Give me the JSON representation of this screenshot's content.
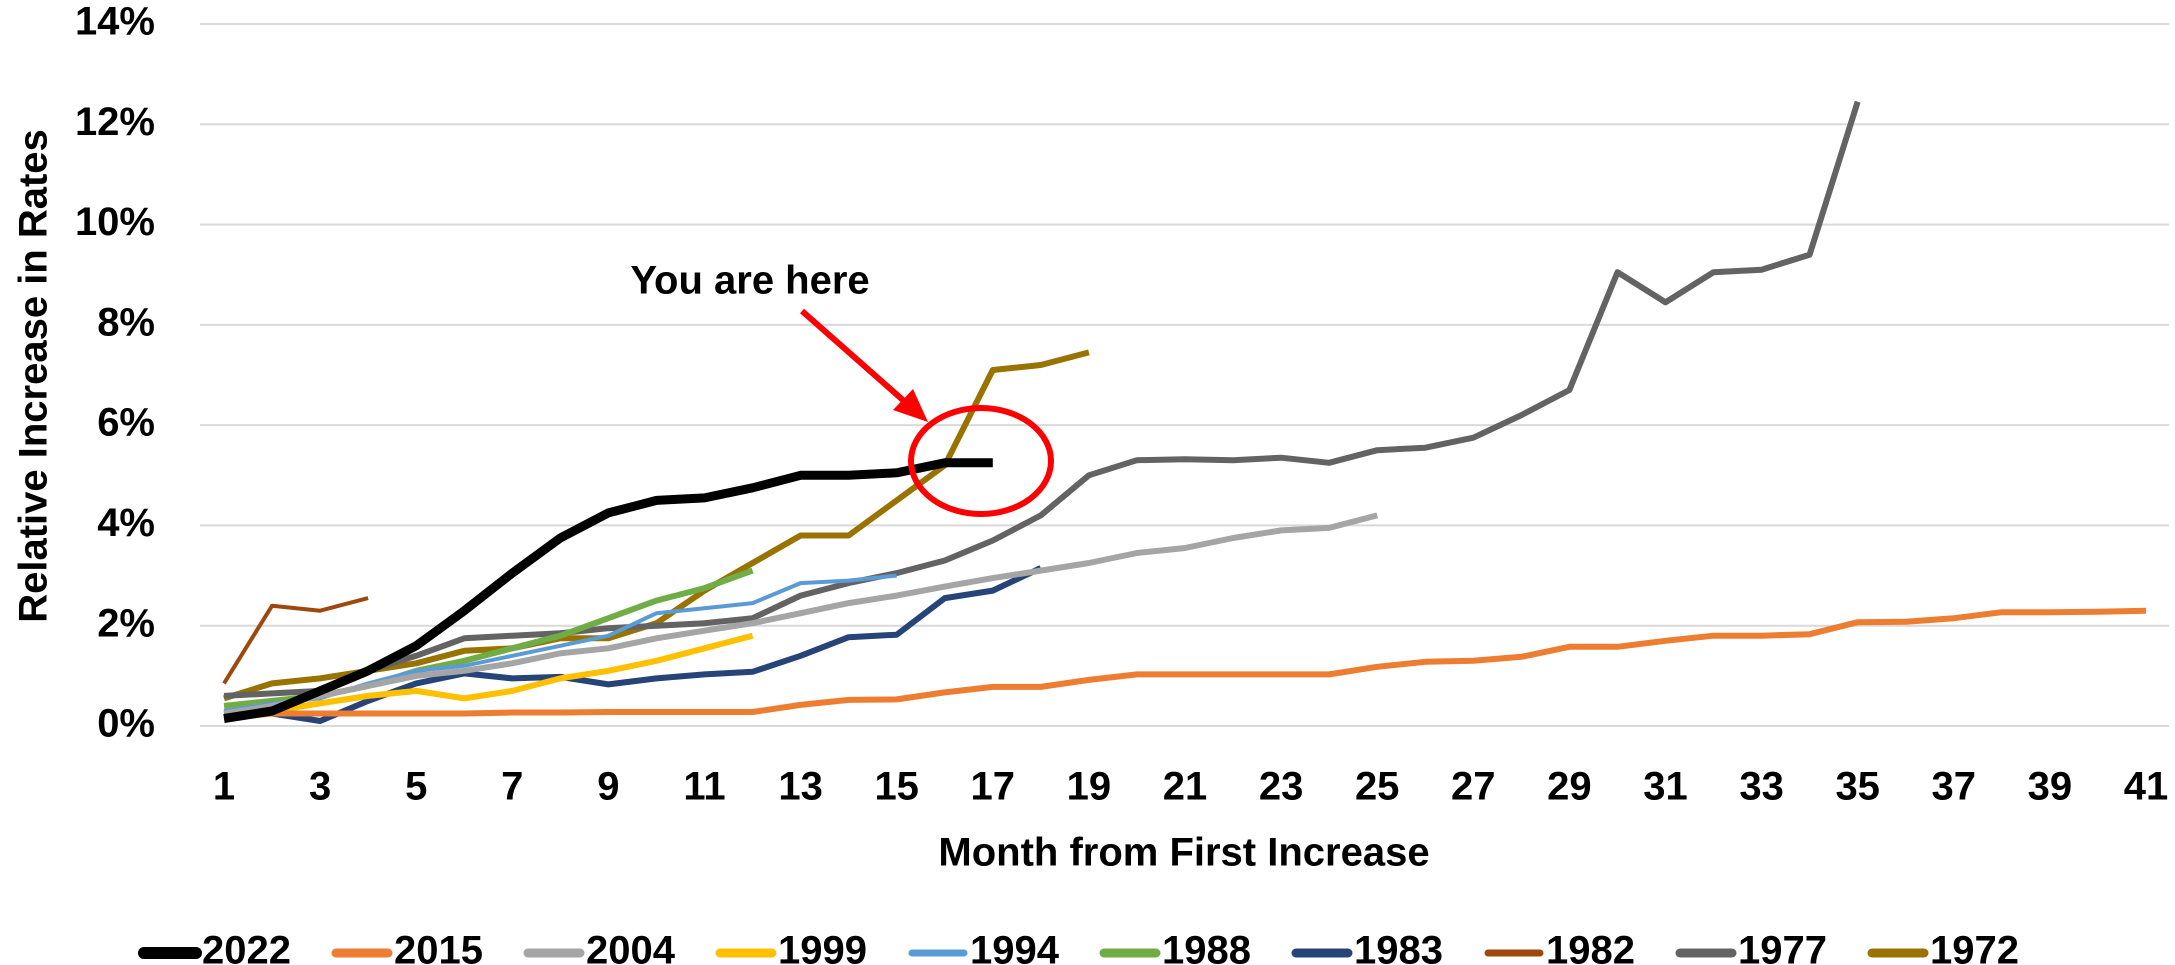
{
  "chart_data": {
    "type": "line",
    "xlabel": "Month from First Increase",
    "ylabel": "Relative Increase in Rates",
    "annotation": "You are here",
    "grid": true,
    "legend": "bottom",
    "x": [
      1,
      2,
      3,
      4,
      5,
      6,
      7,
      8,
      9,
      10,
      11,
      12,
      13,
      14,
      15,
      16,
      17,
      18,
      19,
      20,
      21,
      22,
      23,
      24,
      25,
      26,
      27,
      28,
      29,
      30,
      31,
      32,
      33,
      34,
      35,
      36,
      37,
      38,
      39,
      40,
      41
    ],
    "xlim": [
      1,
      41
    ],
    "xticks": [
      1,
      3,
      5,
      7,
      9,
      11,
      13,
      15,
      17,
      19,
      21,
      23,
      25,
      27,
      29,
      31,
      33,
      35,
      37,
      39,
      41
    ],
    "ylim": [
      0,
      14
    ],
    "yticks": [
      {
        "value": 0,
        "label": "0%"
      },
      {
        "value": 2,
        "label": "2%"
      },
      {
        "value": 4,
        "label": "4%"
      },
      {
        "value": 6,
        "label": "6%"
      },
      {
        "value": 8,
        "label": "8%"
      },
      {
        "value": 10,
        "label": "10%"
      },
      {
        "value": 12,
        "label": "12%"
      },
      {
        "value": 14,
        "label": "14%"
      }
    ],
    "series": [
      {
        "name": "2022",
        "color": "#000000",
        "width": 9,
        "values": [
          0.15,
          0.3,
          0.7,
          1.1,
          1.6,
          2.3,
          3.05,
          3.75,
          4.25,
          4.5,
          4.55,
          4.75,
          5.0,
          5.0,
          5.05,
          5.25,
          5.25,
          null,
          null,
          null,
          null,
          null,
          null,
          null,
          null,
          null,
          null,
          null,
          null,
          null,
          null,
          null,
          null,
          null,
          null,
          null,
          null,
          null,
          null,
          null,
          null
        ]
      },
      {
        "name": "2015",
        "color": "#ed7d31",
        "width": 6,
        "values": [
          0.15,
          0.25,
          0.25,
          0.25,
          0.25,
          0.25,
          0.27,
          0.27,
          0.28,
          0.28,
          0.28,
          0.28,
          0.42,
          0.52,
          0.53,
          0.67,
          0.78,
          0.78,
          0.92,
          1.03,
          1.03,
          1.03,
          1.03,
          1.03,
          1.18,
          1.28,
          1.3,
          1.38,
          1.58,
          1.58,
          1.7,
          1.8,
          1.8,
          1.83,
          2.07,
          2.08,
          2.15,
          2.27,
          2.27,
          2.28,
          2.3
        ]
      },
      {
        "name": "2004",
        "color": "#a5a5a5",
        "width": 6,
        "values": [
          0.25,
          0.4,
          0.6,
          0.8,
          1.0,
          1.1,
          1.25,
          1.45,
          1.55,
          1.75,
          1.9,
          2.05,
          2.25,
          2.45,
          2.6,
          2.78,
          2.95,
          3.1,
          3.25,
          3.45,
          3.55,
          3.75,
          3.9,
          3.95,
          4.2,
          null,
          null,
          null,
          null,
          null,
          null,
          null,
          null,
          null,
          null,
          null,
          null,
          null,
          null,
          null,
          null
        ]
      },
      {
        "name": "1999",
        "color": "#ffc000",
        "width": 6,
        "values": [
          0.25,
          0.3,
          0.45,
          0.6,
          0.7,
          0.55,
          0.7,
          0.95,
          1.1,
          1.3,
          1.55,
          1.8,
          null,
          null,
          null,
          null,
          null,
          null,
          null,
          null,
          null,
          null,
          null,
          null,
          null,
          null,
          null,
          null,
          null,
          null,
          null,
          null,
          null,
          null,
          null,
          null,
          null,
          null,
          null,
          null,
          null
        ]
      },
      {
        "name": "1994",
        "color": "#5b9bd5",
        "width": 4,
        "values": [
          0.3,
          0.45,
          0.55,
          0.85,
          1.1,
          1.2,
          1.4,
          1.6,
          1.8,
          2.25,
          2.35,
          2.45,
          2.85,
          2.9,
          3.0,
          null,
          null,
          null,
          null,
          null,
          null,
          null,
          null,
          null,
          null,
          null,
          null,
          null,
          null,
          null,
          null,
          null,
          null,
          null,
          null,
          null,
          null,
          null,
          null,
          null,
          null
        ]
      },
      {
        "name": "1988",
        "color": "#70ad47",
        "width": 6,
        "values": [
          0.4,
          0.5,
          0.6,
          0.8,
          1.1,
          1.3,
          1.55,
          1.8,
          2.15,
          2.5,
          2.75,
          3.1,
          null,
          null,
          null,
          null,
          null,
          null,
          null,
          null,
          null,
          null,
          null,
          null,
          null,
          null,
          null,
          null,
          null,
          null,
          null,
          null,
          null,
          null,
          null,
          null,
          null,
          null,
          null,
          null,
          null
        ]
      },
      {
        "name": "1983",
        "color": "#264478",
        "width": 6,
        "values": [
          0.25,
          0.25,
          0.1,
          0.5,
          0.85,
          1.05,
          0.95,
          0.98,
          0.83,
          0.95,
          1.03,
          1.08,
          1.4,
          1.77,
          1.82,
          2.55,
          2.7,
          3.15,
          null,
          null,
          null,
          null,
          null,
          null,
          null,
          null,
          null,
          null,
          null,
          null,
          null,
          null,
          null,
          null,
          null,
          null,
          null,
          null,
          null,
          null,
          null
        ]
      },
      {
        "name": "1982",
        "color": "#9e480e",
        "width": 4,
        "values": [
          0.85,
          2.4,
          2.3,
          2.55,
          null,
          null,
          null,
          null,
          null,
          null,
          null,
          null,
          null,
          null,
          null,
          null,
          null,
          null,
          null,
          null,
          null,
          null,
          null,
          null,
          null,
          null,
          null,
          null,
          null,
          null,
          null,
          null,
          null,
          null,
          null,
          null,
          null,
          null,
          null,
          null,
          null
        ]
      },
      {
        "name": "1977",
        "color": "#636363",
        "width": 6,
        "values": [
          0.6,
          0.65,
          0.7,
          1.1,
          1.4,
          1.75,
          1.8,
          1.85,
          1.95,
          2.0,
          2.05,
          2.15,
          2.6,
          2.85,
          3.05,
          3.3,
          3.7,
          4.2,
          5.0,
          5.3,
          5.32,
          5.3,
          5.35,
          5.25,
          5.5,
          5.55,
          5.75,
          6.2,
          6.7,
          9.05,
          8.45,
          9.05,
          9.1,
          9.4,
          12.45,
          null,
          null,
          null,
          null,
          null,
          null
        ]
      },
      {
        "name": "1972",
        "color": "#997300",
        "width": 6,
        "values": [
          0.55,
          0.85,
          0.95,
          1.1,
          1.25,
          1.5,
          1.55,
          1.75,
          1.75,
          2.05,
          2.7,
          3.25,
          3.8,
          3.8,
          4.5,
          5.2,
          7.1,
          7.2,
          7.45,
          null,
          null,
          null,
          null,
          null,
          null,
          null,
          null,
          null,
          null,
          null,
          null,
          null,
          null,
          null,
          null,
          null,
          null,
          null,
          null,
          null,
          null
        ]
      }
    ]
  }
}
